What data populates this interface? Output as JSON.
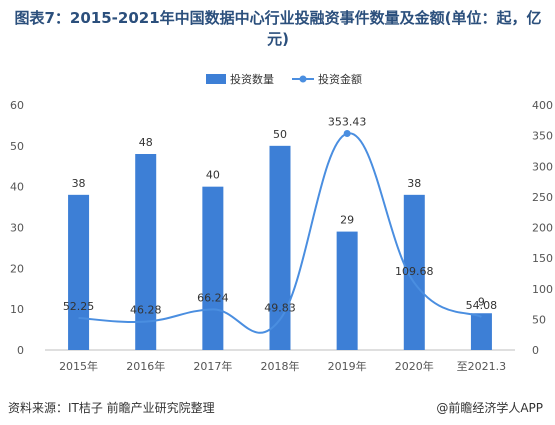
{
  "title": "图表7：2015-2021年中国数据中心行业投融资事件数量及金额(单位：起，亿元)",
  "source": "资料来源：IT桔子 前瞻产业研究院整理",
  "credit": "@前瞻经济学人APP",
  "colors": {
    "bar": "#3d7fd6",
    "line": "#4a8ee0",
    "title": "#2b4f7c"
  },
  "chart_data": {
    "type": "bar",
    "categories": [
      "2015年",
      "2016年",
      "2017年",
      "2018年",
      "2019年",
      "2020年",
      "至2021.3"
    ],
    "series": [
      {
        "name": "投资数量",
        "type": "bar",
        "axis": "left",
        "values": [
          38,
          48,
          40,
          50,
          29,
          38,
          9
        ]
      },
      {
        "name": "投资金额",
        "type": "line",
        "axis": "right",
        "smooth": true,
        "values": [
          52.25,
          46.28,
          66.24,
          49.83,
          353.43,
          109.68,
          54.08
        ]
      }
    ],
    "y_left": {
      "min": 0,
      "max": 60,
      "ticks": [
        0,
        10,
        20,
        30,
        40,
        50,
        60
      ]
    },
    "y_right": {
      "min": 0,
      "max": 400,
      "ticks": [
        0,
        50,
        100,
        150,
        200,
        250,
        300,
        350,
        400
      ]
    },
    "legend_position": "top-center",
    "grid": false
  }
}
